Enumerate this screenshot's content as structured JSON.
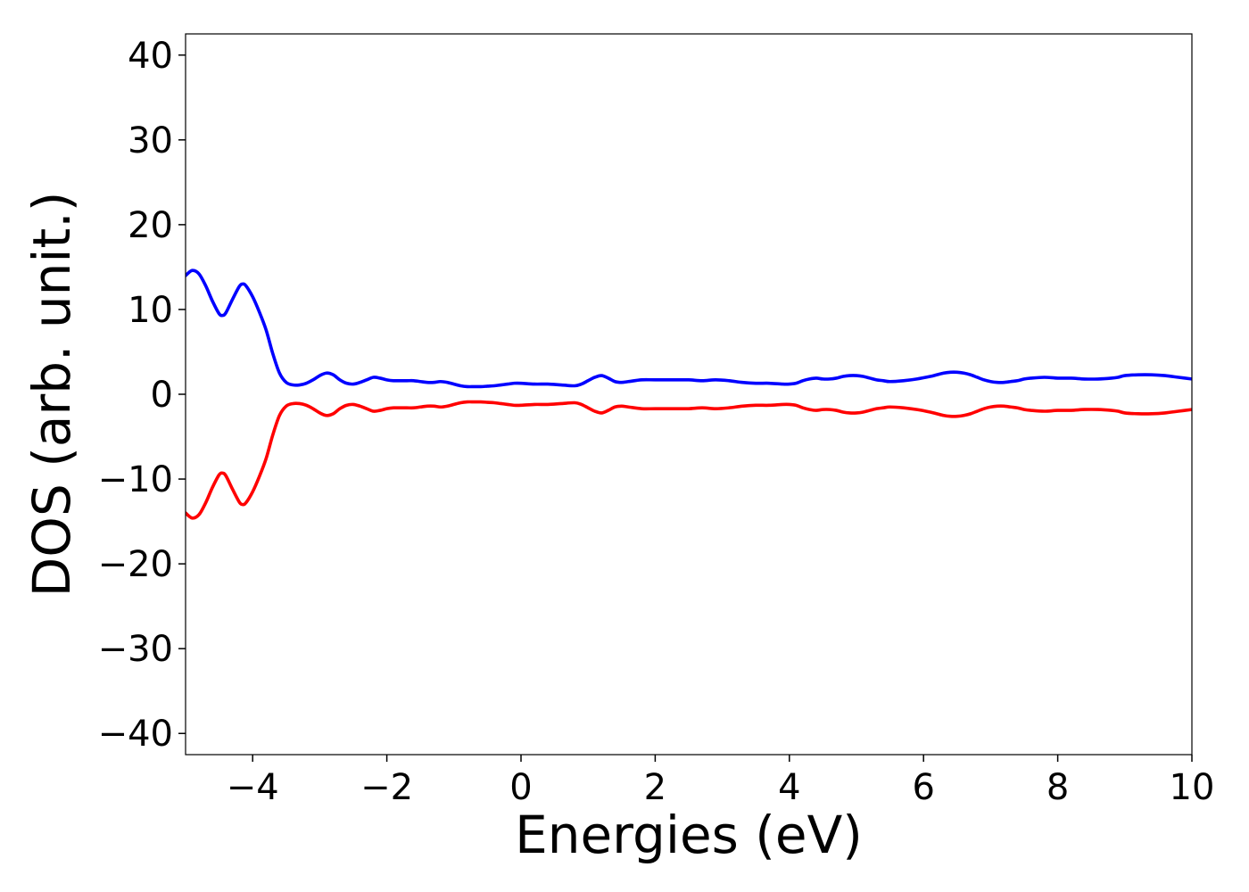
{
  "chart_data": {
    "type": "line",
    "title": "",
    "xlabel": "Energies (eV)",
    "ylabel": "DOS (arb. unit.)",
    "xlim": [
      -5,
      10
    ],
    "ylim": [
      -42.5,
      42.5
    ],
    "x_ticks": [
      -4,
      -2,
      0,
      2,
      4,
      6,
      8,
      10
    ],
    "y_ticks": [
      -40,
      -30,
      -20,
      -10,
      0,
      10,
      20,
      30,
      40
    ],
    "x_tick_labels": [
      "−4",
      "−2",
      "0",
      "2",
      "4",
      "6",
      "8",
      "10"
    ],
    "y_tick_labels": [
      "−40",
      "−30",
      "−20",
      "−10",
      "0",
      "10",
      "20",
      "30",
      "40"
    ],
    "grid": false,
    "legend": "none",
    "series": [
      {
        "color": "#0000ff",
        "x": [
          -5.0,
          -4.9,
          -4.8,
          -4.7,
          -4.6,
          -4.5,
          -4.45,
          -4.4,
          -4.3,
          -4.2,
          -4.15,
          -4.1,
          -4.0,
          -3.9,
          -3.8,
          -3.7,
          -3.6,
          -3.5,
          -3.4,
          -3.3,
          -3.2,
          -3.1,
          -3.0,
          -2.9,
          -2.8,
          -2.7,
          -2.6,
          -2.5,
          -2.4,
          -2.3,
          -2.2,
          -2.1,
          -2.0,
          -1.9,
          -1.8,
          -1.7,
          -1.6,
          -1.5,
          -1.4,
          -1.3,
          -1.2,
          -1.1,
          -1.0,
          -0.9,
          -0.8,
          -0.7,
          -0.6,
          -0.5,
          -0.4,
          -0.3,
          -0.2,
          -0.1,
          0.0,
          0.2,
          0.4,
          0.6,
          0.8,
          0.9,
          1.0,
          1.1,
          1.2,
          1.3,
          1.4,
          1.5,
          1.6,
          1.8,
          2.0,
          2.3,
          2.5,
          2.7,
          2.9,
          3.1,
          3.3,
          3.5,
          3.7,
          3.9,
          4.0,
          4.1,
          4.2,
          4.3,
          4.4,
          4.5,
          4.6,
          4.7,
          4.8,
          4.9,
          5.0,
          5.1,
          5.2,
          5.3,
          5.4,
          5.5,
          5.7,
          5.9,
          6.1,
          6.2,
          6.3,
          6.4,
          6.5,
          6.6,
          6.7,
          6.8,
          6.9,
          7.0,
          7.1,
          7.2,
          7.3,
          7.4,
          7.5,
          7.6,
          7.8,
          8.0,
          8.2,
          8.4,
          8.6,
          8.8,
          8.9,
          9.0,
          9.2,
          9.4,
          9.6,
          9.8,
          10.0
        ],
        "y": [
          14.0,
          14.6,
          14.2,
          12.8,
          11.0,
          9.5,
          9.3,
          9.6,
          11.2,
          12.7,
          13.0,
          12.8,
          11.5,
          9.7,
          7.6,
          4.8,
          2.5,
          1.4,
          1.1,
          1.1,
          1.3,
          1.7,
          2.2,
          2.5,
          2.3,
          1.7,
          1.3,
          1.2,
          1.4,
          1.7,
          2.0,
          1.9,
          1.7,
          1.6,
          1.6,
          1.6,
          1.6,
          1.5,
          1.4,
          1.4,
          1.5,
          1.4,
          1.2,
          1.0,
          0.9,
          0.9,
          0.9,
          0.95,
          1.0,
          1.1,
          1.2,
          1.3,
          1.3,
          1.2,
          1.2,
          1.1,
          1.0,
          1.2,
          1.6,
          2.0,
          2.2,
          1.9,
          1.5,
          1.4,
          1.5,
          1.7,
          1.7,
          1.7,
          1.7,
          1.6,
          1.7,
          1.6,
          1.4,
          1.3,
          1.3,
          1.2,
          1.2,
          1.3,
          1.6,
          1.8,
          1.9,
          1.8,
          1.8,
          1.9,
          2.1,
          2.2,
          2.2,
          2.1,
          1.9,
          1.7,
          1.6,
          1.5,
          1.6,
          1.8,
          2.1,
          2.3,
          2.5,
          2.6,
          2.6,
          2.5,
          2.3,
          2.0,
          1.7,
          1.5,
          1.4,
          1.4,
          1.5,
          1.6,
          1.8,
          1.9,
          2.0,
          1.9,
          1.9,
          1.8,
          1.8,
          1.9,
          2.0,
          2.2,
          2.3,
          2.3,
          2.2,
          2.0,
          1.8
        ]
      },
      {
        "color": "#ff0000",
        "x": [
          -5.0,
          -4.9,
          -4.8,
          -4.7,
          -4.6,
          -4.5,
          -4.45,
          -4.4,
          -4.3,
          -4.2,
          -4.15,
          -4.1,
          -4.0,
          -3.9,
          -3.8,
          -3.7,
          -3.6,
          -3.5,
          -3.4,
          -3.3,
          -3.2,
          -3.1,
          -3.0,
          -2.9,
          -2.8,
          -2.7,
          -2.6,
          -2.5,
          -2.4,
          -2.3,
          -2.2,
          -2.1,
          -2.0,
          -1.9,
          -1.8,
          -1.7,
          -1.6,
          -1.5,
          -1.4,
          -1.3,
          -1.2,
          -1.1,
          -1.0,
          -0.9,
          -0.8,
          -0.7,
          -0.6,
          -0.5,
          -0.4,
          -0.3,
          -0.2,
          -0.1,
          0.0,
          0.2,
          0.4,
          0.6,
          0.8,
          0.9,
          1.0,
          1.1,
          1.2,
          1.3,
          1.4,
          1.5,
          1.6,
          1.8,
          2.0,
          2.3,
          2.5,
          2.7,
          2.9,
          3.1,
          3.3,
          3.5,
          3.7,
          3.9,
          4.0,
          4.1,
          4.2,
          4.3,
          4.4,
          4.5,
          4.6,
          4.7,
          4.8,
          4.9,
          5.0,
          5.1,
          5.2,
          5.3,
          5.4,
          5.5,
          5.7,
          5.9,
          6.1,
          6.2,
          6.3,
          6.4,
          6.5,
          6.6,
          6.7,
          6.8,
          6.9,
          7.0,
          7.1,
          7.2,
          7.3,
          7.4,
          7.5,
          7.6,
          7.8,
          8.0,
          8.2,
          8.4,
          8.6,
          8.8,
          8.9,
          9.0,
          9.2,
          9.4,
          9.6,
          9.8,
          10.0
        ],
        "y": [
          -14.0,
          -14.6,
          -14.2,
          -12.8,
          -11.0,
          -9.5,
          -9.3,
          -9.6,
          -11.2,
          -12.7,
          -13.0,
          -12.8,
          -11.5,
          -9.7,
          -7.6,
          -4.8,
          -2.5,
          -1.4,
          -1.1,
          -1.1,
          -1.3,
          -1.7,
          -2.2,
          -2.5,
          -2.3,
          -1.7,
          -1.3,
          -1.2,
          -1.4,
          -1.7,
          -2.0,
          -1.9,
          -1.7,
          -1.6,
          -1.6,
          -1.6,
          -1.6,
          -1.5,
          -1.4,
          -1.4,
          -1.5,
          -1.4,
          -1.2,
          -1.0,
          -0.9,
          -0.9,
          -0.9,
          -0.95,
          -1.0,
          -1.1,
          -1.2,
          -1.3,
          -1.3,
          -1.2,
          -1.2,
          -1.1,
          -1.0,
          -1.2,
          -1.6,
          -2.0,
          -2.2,
          -1.9,
          -1.5,
          -1.4,
          -1.5,
          -1.7,
          -1.7,
          -1.7,
          -1.7,
          -1.6,
          -1.7,
          -1.6,
          -1.4,
          -1.3,
          -1.3,
          -1.2,
          -1.2,
          -1.3,
          -1.6,
          -1.8,
          -1.9,
          -1.8,
          -1.8,
          -1.9,
          -2.1,
          -2.2,
          -2.2,
          -2.1,
          -1.9,
          -1.7,
          -1.6,
          -1.5,
          -1.6,
          -1.8,
          -2.1,
          -2.3,
          -2.5,
          -2.6,
          -2.6,
          -2.5,
          -2.3,
          -2.0,
          -1.7,
          -1.5,
          -1.4,
          -1.4,
          -1.5,
          -1.6,
          -1.8,
          -1.9,
          -2.0,
          -1.9,
          -1.9,
          -1.8,
          -1.8,
          -1.9,
          -2.0,
          -2.2,
          -2.3,
          -2.3,
          -2.2,
          -2.0,
          -1.8
        ]
      }
    ]
  }
}
